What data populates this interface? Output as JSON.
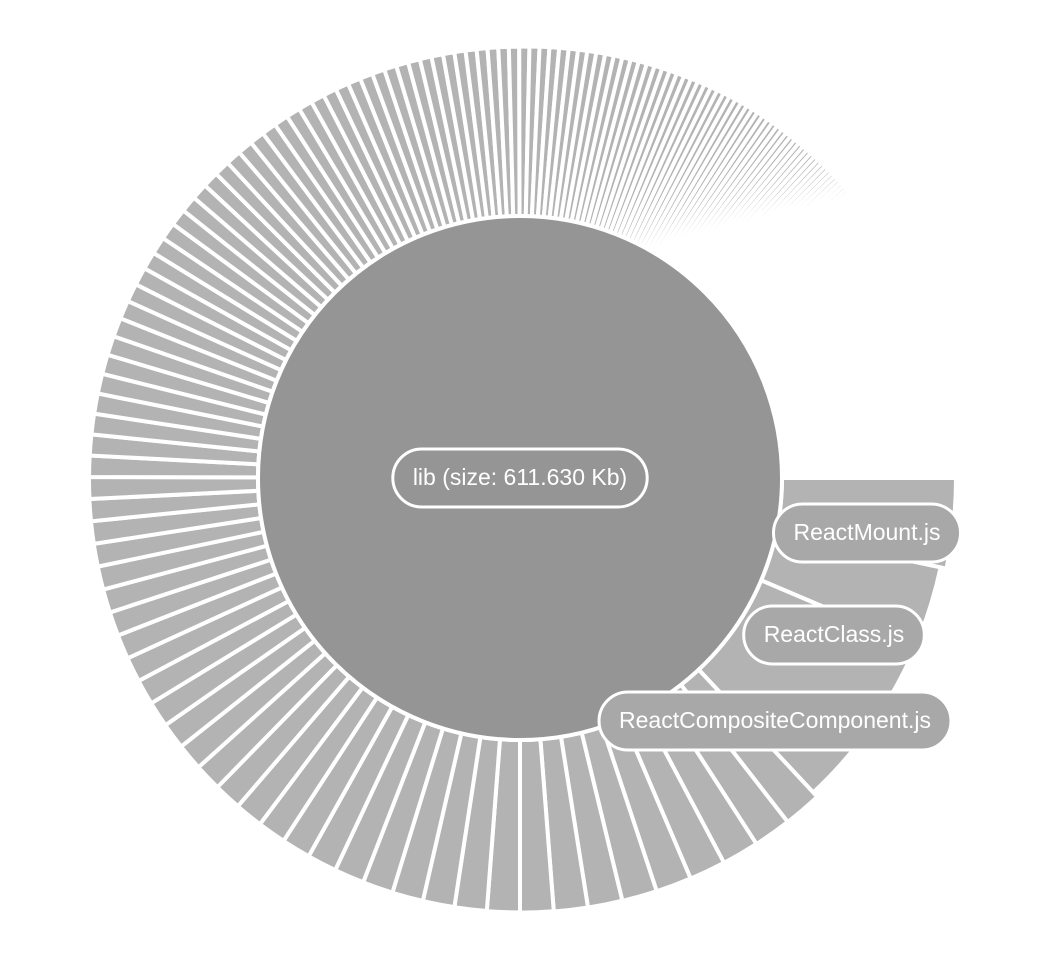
{
  "chart_data": {
    "type": "sunburst",
    "title": "",
    "root": {
      "label": "lib (size: 611.630 Kb)",
      "name": "lib",
      "size_kb": 611.63
    },
    "labeled_children": [
      {
        "name": "ReactMount.js",
        "label": "ReactMount.js"
      },
      {
        "name": "ReactClass.js",
        "label": "ReactClass.js"
      },
      {
        "name": "ReactCompositeComponent.js",
        "label": "ReactCompositeComponent.js"
      }
    ],
    "unlabeled_child_count": 150,
    "colors": {
      "root": "#959595",
      "children": "#b3b3b3",
      "label_pill": "#a8a8a8",
      "center_pill": "#959595",
      "separator": "#ffffff"
    }
  }
}
